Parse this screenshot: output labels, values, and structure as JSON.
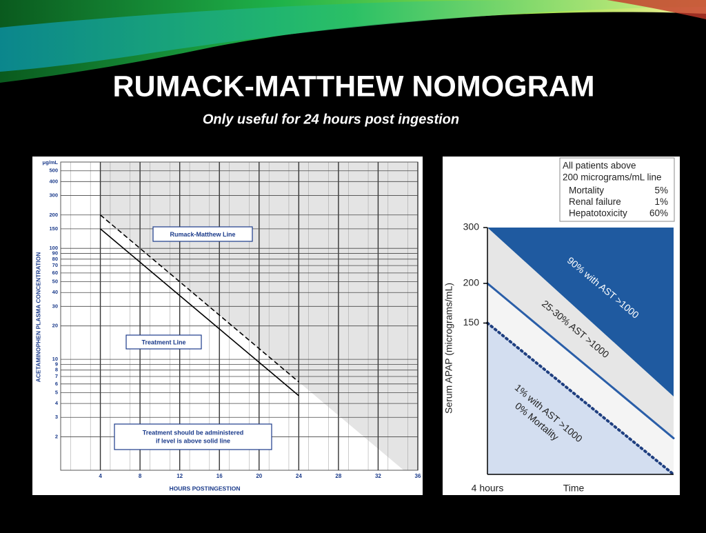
{
  "slide": {
    "title": "RUMACK-MATTHEW NOMOGRAM",
    "subtitle": "Only useful for 24 hours post ingestion"
  },
  "chart_data": [
    {
      "type": "line",
      "y_scale": "log",
      "grid": true,
      "y_unit": "μg/mL",
      "x_label": "HOURS POSTINGESTION",
      "y_label": "ACETAMINOPHEN PLASMA CONCENTRATION",
      "x": [
        4,
        24
      ],
      "series": [
        {
          "name": "Rumack-Matthew Line",
          "color": "#000000",
          "style": "dashed",
          "values": [
            200,
            6.25
          ]
        },
        {
          "name": "Treatment Line",
          "color": "#000000",
          "style": "solid",
          "values": [
            150,
            4.7
          ]
        }
      ],
      "annotations": [
        "Treatment should be administered",
        "if level is above solid line"
      ],
      "xlim": [
        0,
        36
      ],
      "xticks": [
        4,
        8,
        12,
        16,
        20,
        24,
        28,
        32,
        36
      ],
      "ylim": [
        1,
        600
      ],
      "yticks": [
        2,
        3,
        4,
        5,
        6,
        7,
        8,
        9,
        10,
        20,
        30,
        40,
        50,
        60,
        70,
        80,
        90,
        100,
        150,
        200,
        300,
        400,
        500
      ]
    },
    {
      "type": "line",
      "y_scale": "log",
      "y_label": "Serum APAP (micrograms/mL)",
      "x_label": "Time",
      "categories": [
        "4 hours",
        null
      ],
      "series": [
        {
          "color": "#1f5aa0",
          "style": "area-above",
          "values": [
            300,
            88
          ]
        },
        {
          "color": "#2a5ea8",
          "style": "solid",
          "values": [
            200,
            65
          ]
        },
        {
          "color": "#1f3f80",
          "style": "dotted",
          "values": [
            150,
            50
          ]
        }
      ],
      "region_labels": [
        "90% with AST >1000",
        "25-30% AST >1000",
        "1% with AST >1000",
        "0% Mortality"
      ],
      "legend_box": {
        "heading": [
          "All patients above",
          "200 micrograms/mL line"
        ],
        "rows": [
          [
            "Mortality",
            "5%"
          ],
          [
            "Renal failure",
            "1%"
          ],
          [
            "Hepatotoxicity",
            "60%"
          ]
        ]
      },
      "ylim": [
        50,
        300
      ],
      "yticks": [
        150,
        200,
        300
      ]
    }
  ]
}
